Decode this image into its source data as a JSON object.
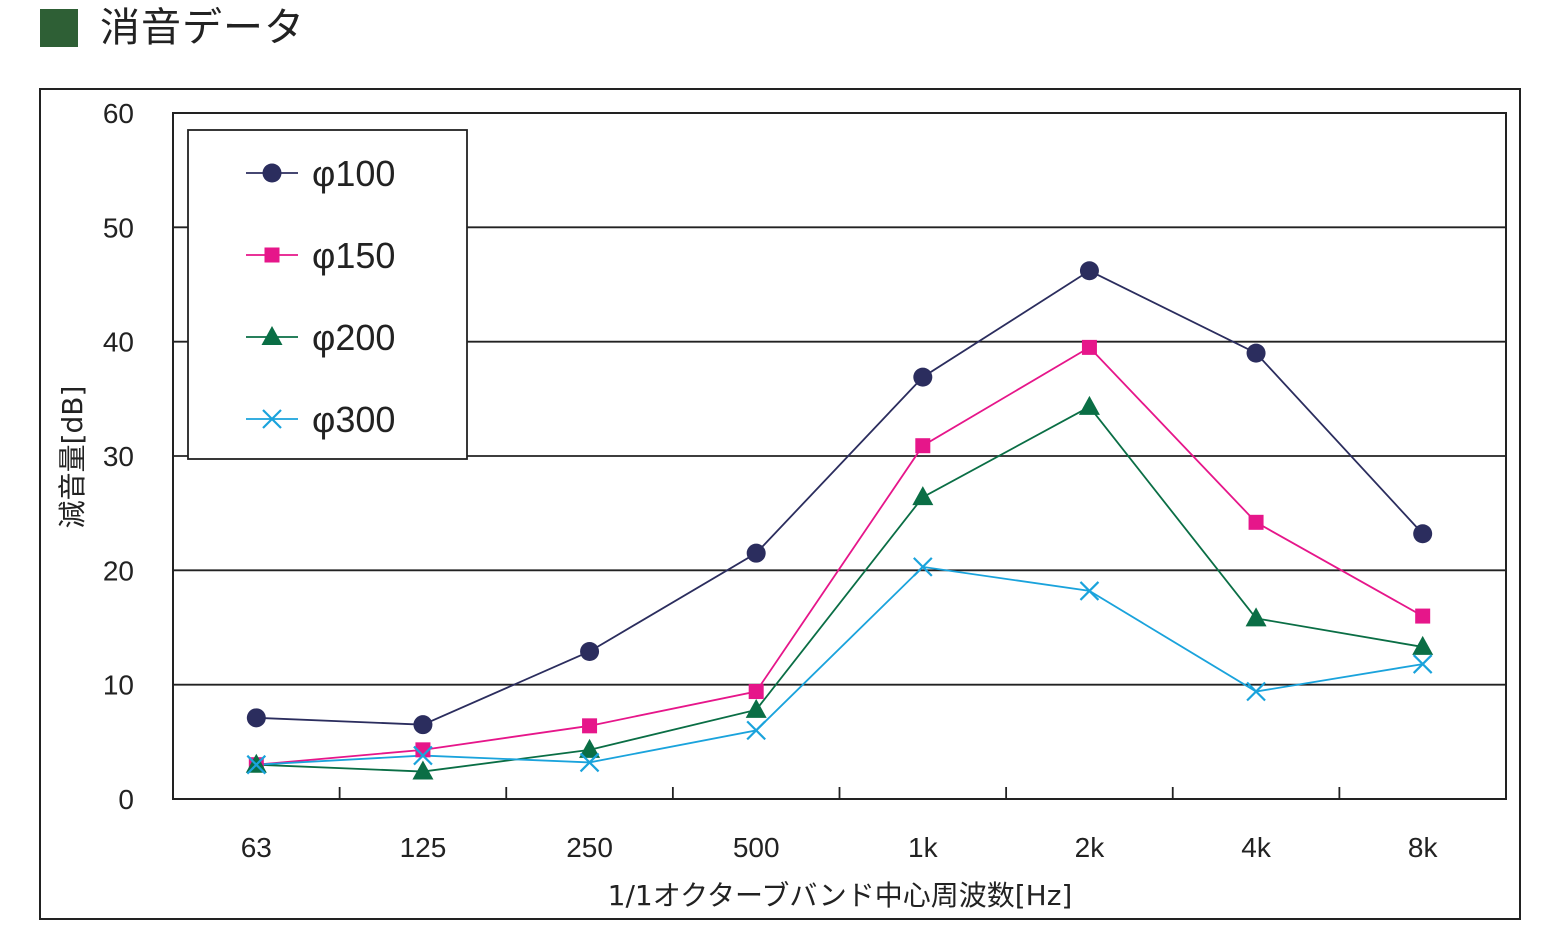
{
  "header": {
    "title": "消音データ",
    "square_color": "#2e5f35"
  },
  "chart_data": {
    "type": "line",
    "title": "",
    "xlabel": "1/1オクターブバンド中心周波数[Hz]",
    "ylabel": "減音量[dB]",
    "categories": [
      "63",
      "125",
      "250",
      "500",
      "1k",
      "2k",
      "4k",
      "8k"
    ],
    "ylim": [
      0,
      60
    ],
    "yticks": [
      "0",
      "10",
      "20",
      "30",
      "40",
      "50",
      "60"
    ],
    "grid": true,
    "legend_position": "top-left",
    "series": [
      {
        "name": "φ100",
        "marker": "circle",
        "color": "#2b2d5e",
        "values": [
          7.1,
          6.5,
          12.9,
          21.5,
          36.9,
          46.2,
          39.0,
          23.2
        ]
      },
      {
        "name": "φ150",
        "marker": "square",
        "color": "#e6168a",
        "values": [
          3.0,
          4.3,
          6.4,
          9.4,
          30.9,
          39.5,
          24.2,
          16.0
        ]
      },
      {
        "name": "φ200",
        "marker": "triangle",
        "color": "#0a6e45",
        "values": [
          3.0,
          2.4,
          4.3,
          7.8,
          26.4,
          34.3,
          15.8,
          13.3
        ]
      },
      {
        "name": "φ300",
        "marker": "x",
        "color": "#1aa3dc",
        "values": [
          3.0,
          3.8,
          3.2,
          6.0,
          20.3,
          18.2,
          9.4,
          11.8
        ]
      }
    ]
  }
}
